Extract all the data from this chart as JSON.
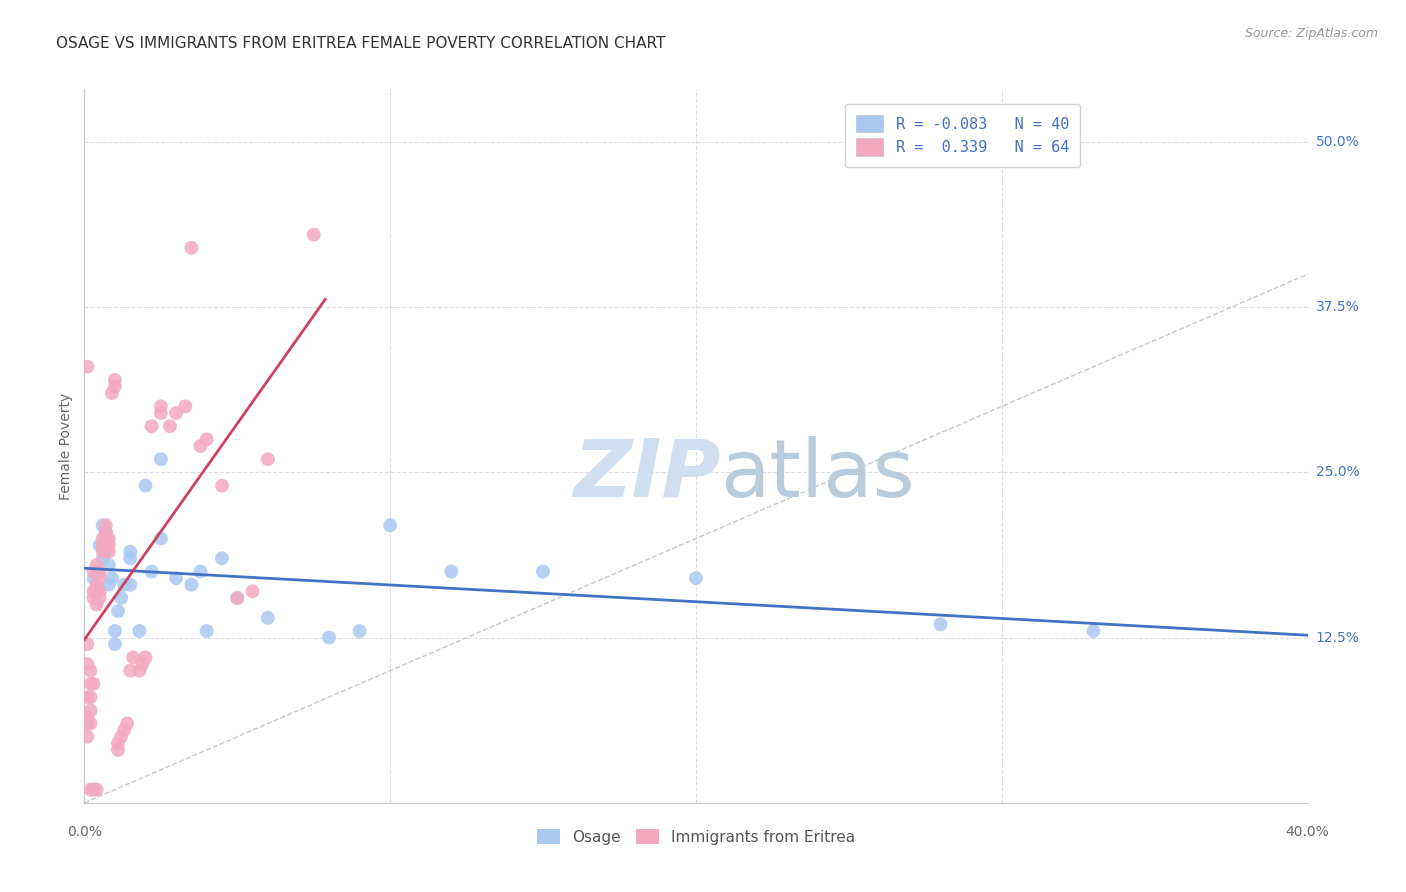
{
  "title": "OSAGE VS IMMIGRANTS FROM ERITREA FEMALE POVERTY CORRELATION CHART",
  "source": "Source: ZipAtlas.com",
  "ylabel": "Female Poverty",
  "yticks": [
    0.0,
    0.125,
    0.25,
    0.375,
    0.5
  ],
  "ytick_labels": [
    "",
    "12.5%",
    "25.0%",
    "37.5%",
    "50.0%"
  ],
  "xlim": [
    0.0,
    0.4
  ],
  "ylim": [
    0.0,
    0.54
  ],
  "osage_color": "#a8c8f0",
  "eritrea_color": "#f4a8c0",
  "osage_line_color": "#4472c4",
  "eritrea_line_color": "#d04060",
  "diag_color": "#c8c8d0",
  "background_color": "#ffffff",
  "grid_color": "#dcdce8",
  "watermark_color": "#d0dff0",
  "legend_R1": "R = -0.083",
  "legend_N1": "N = 40",
  "legend_R2": "R =  0.339",
  "legend_N2": "N = 64",
  "title_fontsize": 11,
  "axis_label_fontsize": 10,
  "tick_fontsize": 10,
  "osage_x": [
    0.003,
    0.004,
    0.005,
    0.006,
    0.006,
    0.006,
    0.007,
    0.007,
    0.007,
    0.008,
    0.008,
    0.009,
    0.01,
    0.01,
    0.011,
    0.012,
    0.013,
    0.015,
    0.015,
    0.015,
    0.018,
    0.02,
    0.022,
    0.025,
    0.025,
    0.03,
    0.035,
    0.038,
    0.04,
    0.045,
    0.05,
    0.06,
    0.08,
    0.09,
    0.1,
    0.12,
    0.15,
    0.2,
    0.28,
    0.33
  ],
  "osage_y": [
    0.17,
    0.16,
    0.195,
    0.21,
    0.195,
    0.185,
    0.205,
    0.19,
    0.2,
    0.18,
    0.165,
    0.17,
    0.13,
    0.12,
    0.145,
    0.155,
    0.165,
    0.19,
    0.185,
    0.165,
    0.13,
    0.24,
    0.175,
    0.26,
    0.2,
    0.17,
    0.165,
    0.175,
    0.13,
    0.185,
    0.155,
    0.14,
    0.125,
    0.13,
    0.21,
    0.175,
    0.175,
    0.17,
    0.135,
    0.13
  ],
  "eritrea_x": [
    0.001,
    0.001,
    0.001,
    0.001,
    0.001,
    0.001,
    0.002,
    0.002,
    0.002,
    0.002,
    0.002,
    0.003,
    0.003,
    0.003,
    0.003,
    0.004,
    0.004,
    0.004,
    0.004,
    0.004,
    0.005,
    0.005,
    0.005,
    0.005,
    0.006,
    0.006,
    0.006,
    0.007,
    0.007,
    0.007,
    0.008,
    0.008,
    0.008,
    0.009,
    0.01,
    0.01,
    0.011,
    0.011,
    0.012,
    0.013,
    0.014,
    0.015,
    0.016,
    0.018,
    0.019,
    0.02,
    0.022,
    0.025,
    0.025,
    0.028,
    0.03,
    0.033,
    0.035,
    0.038,
    0.04,
    0.045,
    0.05,
    0.055,
    0.06,
    0.075,
    0.001,
    0.002,
    0.003,
    0.004
  ],
  "eritrea_y": [
    0.05,
    0.06,
    0.065,
    0.08,
    0.105,
    0.12,
    0.06,
    0.07,
    0.08,
    0.09,
    0.1,
    0.155,
    0.16,
    0.175,
    0.09,
    0.15,
    0.16,
    0.165,
    0.175,
    0.18,
    0.155,
    0.16,
    0.17,
    0.175,
    0.19,
    0.195,
    0.2,
    0.195,
    0.205,
    0.21,
    0.19,
    0.195,
    0.2,
    0.31,
    0.315,
    0.32,
    0.04,
    0.045,
    0.05,
    0.055,
    0.06,
    0.1,
    0.11,
    0.1,
    0.105,
    0.11,
    0.285,
    0.295,
    0.3,
    0.285,
    0.295,
    0.3,
    0.42,
    0.27,
    0.275,
    0.24,
    0.155,
    0.16,
    0.26,
    0.43,
    0.33,
    0.01,
    0.01,
    0.01
  ]
}
